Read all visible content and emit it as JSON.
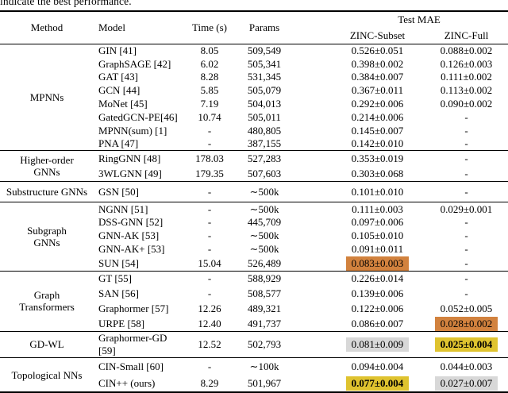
{
  "caption": "indicate the best performance.",
  "table": {
    "highlight_colors": {
      "gold": "#DFC32F",
      "silver": "#D8D8D8",
      "bronze": "#D2823E"
    },
    "headers": {
      "method": "Method",
      "model": "Model",
      "time": "Time (s)",
      "params": "Params",
      "test_mae": "Test MAE",
      "zinc_subset": "ZINC-Subset",
      "zinc_full": "ZINC-Full"
    },
    "sections": [
      {
        "method": "MPNNs",
        "rows": [
          {
            "model": "GIN [41]",
            "time": "8.05",
            "params": "509,549",
            "subset": "0.526±0.051",
            "full": "0.088±0.002"
          },
          {
            "model": "GraphSAGE [42]",
            "time": "6.02",
            "params": "505,341",
            "subset": "0.398±0.002",
            "full": "0.126±0.003"
          },
          {
            "model": "GAT [43]",
            "time": "8.28",
            "params": "531,345",
            "subset": "0.384±0.007",
            "full": "0.111±0.002"
          },
          {
            "model": "GCN [44]",
            "time": "5.85",
            "params": "505,079",
            "subset": "0.367±0.011",
            "full": "0.113±0.002"
          },
          {
            "model": "MoNet [45]",
            "time": "7.19",
            "params": "504,013",
            "subset": "0.292±0.006",
            "full": "0.090±0.002"
          },
          {
            "model": "GatedGCN-PE[46]",
            "time": "10.74",
            "params": "505,011",
            "subset": "0.214±0.006",
            "full": "-"
          },
          {
            "model": "MPNN(sum) [1]",
            "time": "-",
            "params": "480,805",
            "subset": "0.145±0.007",
            "full": "-"
          },
          {
            "model": "PNA [47]",
            "time": "-",
            "params": "387,155",
            "subset": "0.142±0.010",
            "full": "-"
          }
        ]
      },
      {
        "method": "Higher-order\nGNNs",
        "rows": [
          {
            "model": "RingGNN [48]",
            "time": "178.03",
            "params": "527,283",
            "subset": "0.353±0.019",
            "full": "-"
          },
          {
            "model": "3WLGNN [49]",
            "time": "179.35",
            "params": "507,603",
            "subset": "0.303±0.068",
            "full": "-"
          }
        ]
      },
      {
        "method": "Substructure GNNs",
        "rows": [
          {
            "model": "GSN [50]",
            "time": "-",
            "params": "∼500k",
            "subset": "0.101±0.010",
            "full": "-"
          }
        ]
      },
      {
        "method": "Subgraph\nGNNs",
        "rows": [
          {
            "model": "NGNN [51]",
            "time": "-",
            "params": "∼500k",
            "subset": "0.111±0.003",
            "full": "0.029±0.001"
          },
          {
            "model": "DSS-GNN [52]",
            "time": "-",
            "params": "445,709",
            "subset": "0.097±0.006",
            "full": "-"
          },
          {
            "model": "GNN-AK [53]",
            "time": "-",
            "params": "∼500k",
            "subset": "0.105±0.010",
            "full": "-"
          },
          {
            "model": "GNN-AK+ [53]",
            "time": "-",
            "params": "∼500k",
            "subset": "0.091±0.011",
            "full": "-"
          },
          {
            "model": "SUN [54]",
            "time": "15.04",
            "params": "526,489",
            "subset": "0.083±0.003",
            "subset_hl": "bronze",
            "full": "-"
          }
        ]
      },
      {
        "method": "Graph\nTransformers",
        "rows": [
          {
            "model": "GT [55]",
            "time": "-",
            "params": "588,929",
            "subset": "0.226±0.014",
            "full": "-"
          },
          {
            "model": "SAN [56]",
            "time": "-",
            "params": "508,577",
            "subset": "0.139±0.006",
            "full": "-"
          },
          {
            "model": "Graphormer [57]",
            "time": "12.26",
            "params": "489,321",
            "subset": "0.122±0.006",
            "full": "0.052±0.005"
          },
          {
            "model": "URPE [58]",
            "time": "12.40",
            "params": "491,737",
            "subset": "0.086±0.007",
            "full": "0.028±0.002",
            "full_hl": "bronze"
          }
        ]
      },
      {
        "method": "GD-WL",
        "rows": [
          {
            "model": "Graphormer-GD [59]",
            "time": "12.52",
            "params": "502,793",
            "subset": "0.081±0.009",
            "subset_hl": "silver",
            "full": "0.025±0.004",
            "full_hl": "gold"
          }
        ]
      },
      {
        "method": "Topological NNs",
        "rows": [
          {
            "model": "CIN-Small [60]",
            "time": "-",
            "params": "∼100k",
            "subset": "0.094±0.004",
            "full": "0.044±0.003"
          },
          {
            "model": "CIN++ (ours)",
            "time": "8.29",
            "params": "501,967",
            "subset": "0.077±0.004",
            "subset_hl": "gold",
            "full": "0.027±0.007",
            "full_hl": "silver"
          }
        ]
      }
    ]
  }
}
